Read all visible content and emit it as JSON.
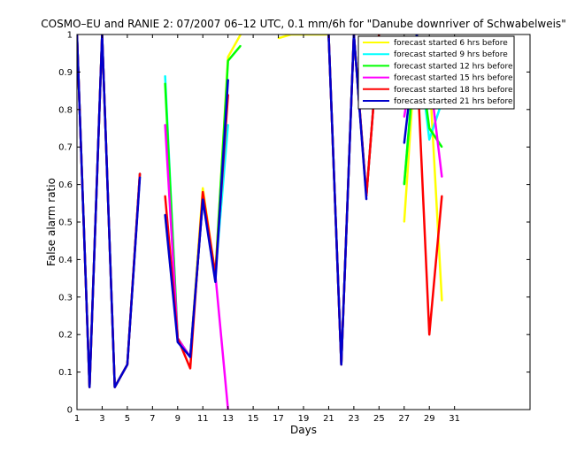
{
  "chart_data": {
    "type": "line",
    "title": "COSMO–EU and RANIE 2: 07/2007 06–12 UTC, 0.1 mm/6h for \"Danube downriver of Schwabelweis\"",
    "xlabel": "Days",
    "ylabel": "False alarm ratio",
    "xlim": [
      1,
      37
    ],
    "ylim": [
      0,
      1
    ],
    "xticks": [
      1,
      3,
      5,
      7,
      9,
      11,
      13,
      15,
      17,
      19,
      21,
      23,
      25,
      27,
      29,
      31
    ],
    "yticks": [
      0,
      0.1,
      0.2,
      0.3,
      0.4,
      0.5,
      0.6,
      0.7,
      0.8,
      0.9,
      1
    ],
    "ytick_labels": [
      "0",
      "0.1",
      "0.2",
      "0.3",
      "0.4",
      "0.5",
      "0.6",
      "0.7",
      "0.8",
      "0.9",
      "1"
    ],
    "grid": false,
    "legend_position": "top-right",
    "series": [
      {
        "name": "forecast started 6 hrs before",
        "color": "#ffff00",
        "values": [
          [
            1,
            1.0
          ],
          [
            2,
            0.06
          ],
          [
            3,
            1.0
          ],
          [
            4,
            0.06
          ],
          [
            5,
            0.12
          ],
          [
            6,
            0.63
          ],
          null,
          [
            8,
            0.52
          ],
          [
            9,
            0.19
          ],
          [
            10,
            0.14
          ],
          [
            11,
            0.59
          ],
          [
            12,
            0.36
          ],
          [
            13,
            0.94
          ],
          [
            14,
            1.0
          ],
          null,
          [
            17,
            0.99
          ],
          [
            18,
            1.0
          ],
          [
            19,
            1.0
          ],
          [
            20,
            1.0
          ],
          [
            21,
            1.0
          ],
          [
            22,
            0.12
          ],
          [
            23,
            1.0
          ],
          [
            24,
            0.57
          ],
          [
            25,
            1.0
          ],
          null,
          [
            27,
            0.5
          ],
          [
            28,
            1.0
          ],
          [
            29,
            0.9
          ],
          [
            30,
            0.29
          ]
        ]
      },
      {
        "name": "forecast started 9 hrs before",
        "color": "#00ffff",
        "values": [
          [
            1,
            1.0
          ],
          [
            2,
            0.06
          ],
          [
            3,
            1.0
          ],
          [
            4,
            0.06
          ],
          [
            5,
            0.12
          ],
          [
            6,
            0.63
          ],
          null,
          [
            8,
            0.89
          ],
          [
            9,
            0.19
          ],
          [
            10,
            0.14
          ],
          [
            11,
            0.56
          ],
          [
            12,
            0.36
          ],
          [
            13,
            0.76
          ],
          null,
          [
            21,
            1.0
          ],
          [
            22,
            0.12
          ],
          [
            23,
            1.0
          ],
          [
            24,
            0.57
          ],
          [
            25,
            1.0
          ],
          null,
          [
            27,
            0.6
          ],
          [
            28,
            1.0
          ],
          [
            29,
            0.72
          ],
          [
            30,
            0.82
          ]
        ]
      },
      {
        "name": "forecast started 12 hrs before",
        "color": "#00ff00",
        "values": [
          [
            1,
            1.0
          ],
          [
            2,
            0.06
          ],
          [
            3,
            1.0
          ],
          [
            4,
            0.06
          ],
          [
            5,
            0.12
          ],
          [
            6,
            0.63
          ],
          null,
          [
            8,
            0.87
          ],
          [
            9,
            0.19
          ],
          [
            10,
            0.14
          ],
          [
            11,
            0.56
          ],
          [
            12,
            0.36
          ],
          [
            13,
            0.93
          ],
          [
            14,
            0.97
          ],
          null,
          [
            21,
            1.0
          ],
          [
            22,
            0.12
          ],
          [
            23,
            1.0
          ],
          [
            24,
            0.57
          ],
          [
            25,
            1.0
          ],
          null,
          [
            27,
            0.6
          ],
          [
            28,
            1.0
          ],
          [
            29,
            0.75
          ],
          [
            30,
            0.7
          ]
        ]
      },
      {
        "name": "forecast started 15 hrs before",
        "color": "#ff00ff",
        "values": [
          [
            1,
            1.0
          ],
          [
            2,
            0.06
          ],
          [
            3,
            1.0
          ],
          [
            4,
            0.06
          ],
          [
            5,
            0.12
          ],
          [
            6,
            0.63
          ],
          null,
          [
            8,
            0.76
          ],
          [
            9,
            0.19
          ],
          [
            10,
            0.14
          ],
          [
            11,
            0.56
          ],
          [
            12,
            0.36
          ],
          [
            13,
            0.0
          ],
          null,
          [
            21,
            1.0
          ],
          [
            22,
            0.12
          ],
          [
            23,
            1.0
          ],
          [
            24,
            0.57
          ],
          [
            25,
            1.0
          ],
          null,
          [
            27,
            0.78
          ],
          [
            28,
            0.99
          ],
          [
            29,
            0.9
          ],
          [
            30,
            0.62
          ]
        ]
      },
      {
        "name": "forecast started 18 hrs before",
        "color": "#ff0000",
        "values": [
          [
            1,
            1.0
          ],
          [
            2,
            0.06
          ],
          [
            3,
            1.0
          ],
          [
            4,
            0.06
          ],
          [
            5,
            0.12
          ],
          [
            6,
            0.63
          ],
          null,
          [
            8,
            0.57
          ],
          [
            9,
            0.19
          ],
          [
            10,
            0.11
          ],
          [
            11,
            0.58
          ],
          [
            12,
            0.36
          ],
          [
            13,
            0.84
          ],
          null,
          [
            21,
            1.0
          ],
          [
            22,
            0.12
          ],
          [
            23,
            1.0
          ],
          [
            24,
            0.57
          ],
          [
            25,
            1.0
          ],
          null,
          [
            27,
            0.83
          ],
          [
            28,
            0.94
          ],
          [
            29,
            0.2
          ],
          [
            30,
            0.57
          ]
        ]
      },
      {
        "name": "forecast started 21 hrs before",
        "color": "#0000cc",
        "values": [
          [
            1,
            1.0
          ],
          [
            2,
            0.06
          ],
          [
            3,
            1.0
          ],
          [
            4,
            0.06
          ],
          [
            5,
            0.12
          ],
          [
            6,
            0.62
          ],
          null,
          [
            8,
            0.52
          ],
          [
            9,
            0.18
          ],
          [
            10,
            0.14
          ],
          [
            11,
            0.56
          ],
          [
            12,
            0.34
          ],
          [
            13,
            0.88
          ],
          null,
          [
            21,
            1.0
          ],
          [
            22,
            0.12
          ],
          [
            23,
            1.0
          ],
          [
            24,
            0.56
          ],
          null,
          [
            27,
            0.71
          ],
          [
            28,
            1.0
          ],
          [
            29,
            0.81
          ],
          [
            30,
            0.82
          ]
        ]
      }
    ]
  }
}
